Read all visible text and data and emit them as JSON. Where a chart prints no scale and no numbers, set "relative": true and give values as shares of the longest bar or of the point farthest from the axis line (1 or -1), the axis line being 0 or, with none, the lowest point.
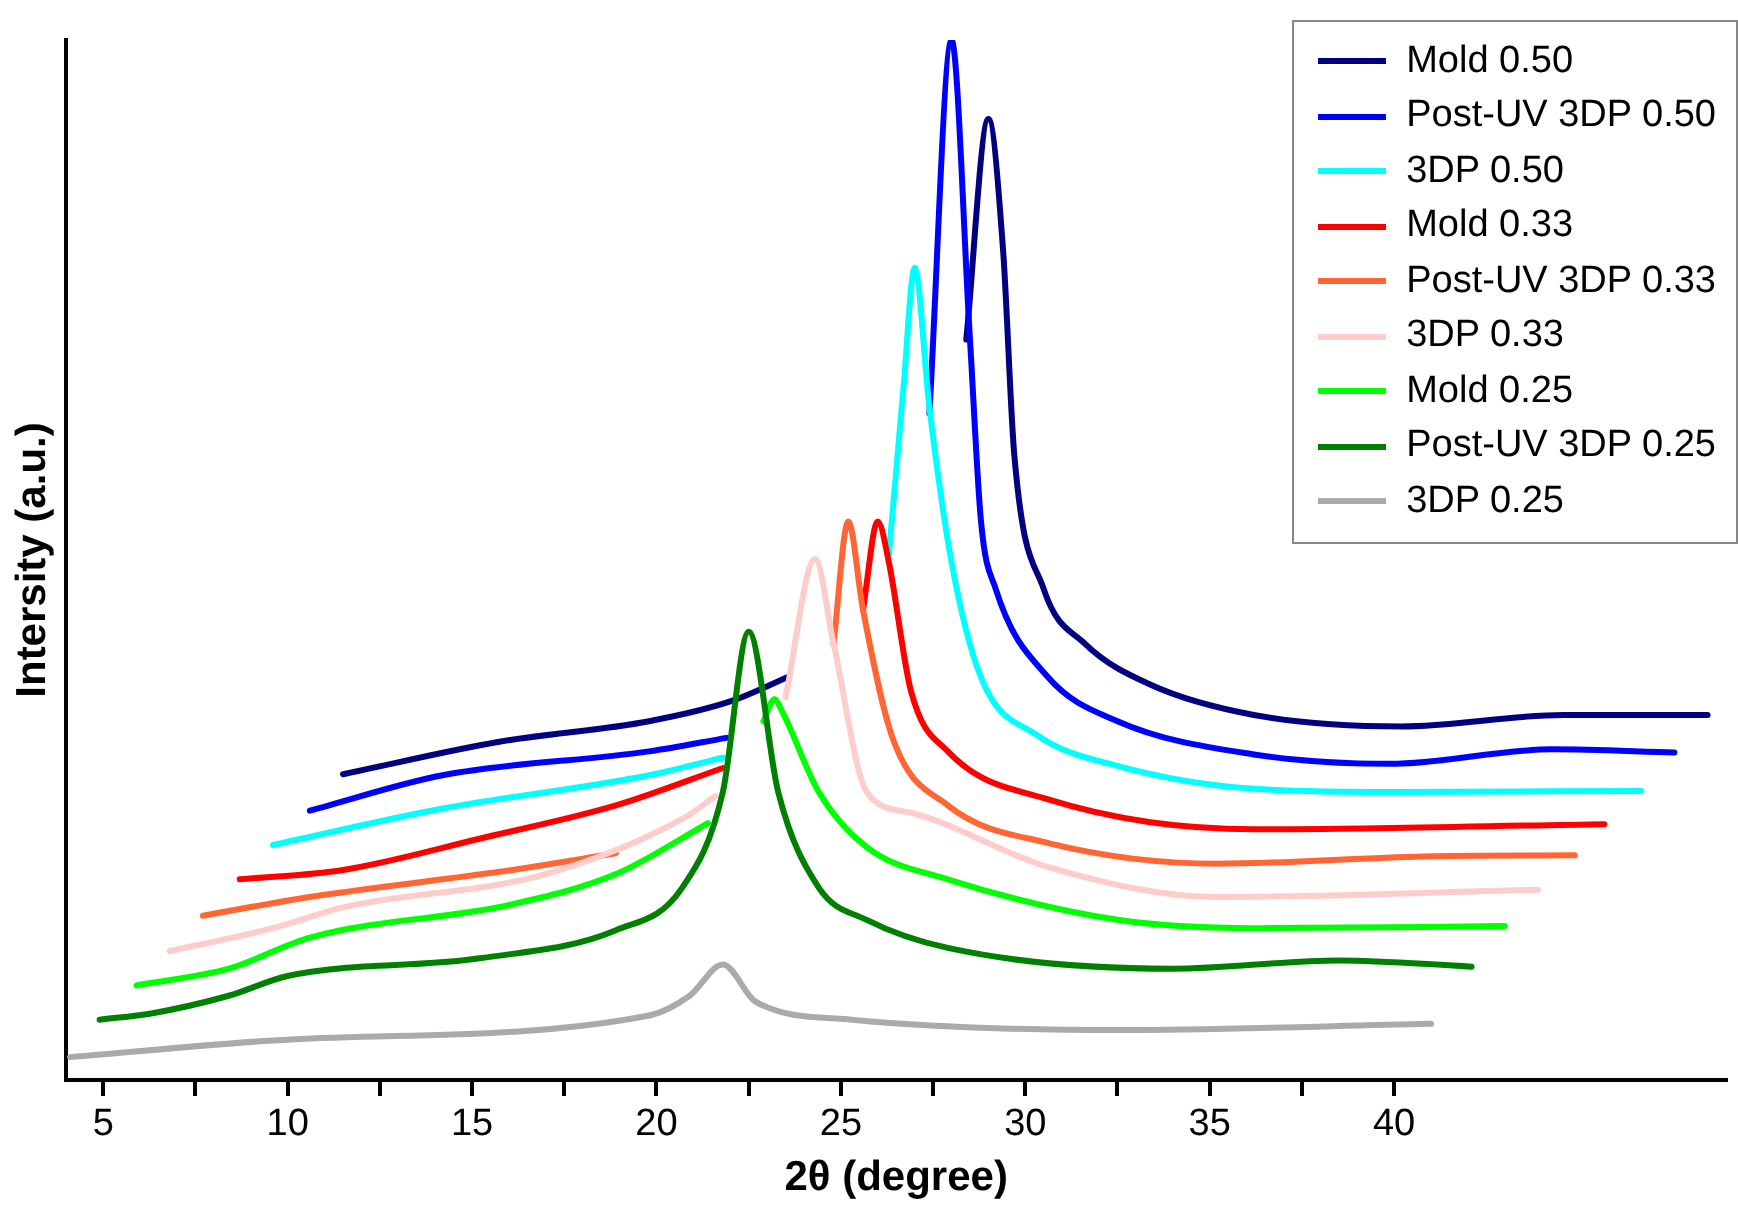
{
  "chart_data": {
    "type": "line",
    "relative": true,
    "xlabel": "2θ (degree)",
    "ylabel": "Intersity (a.u.)",
    "legend": "top right",
    "grid": false,
    "marker": "none",
    "line_style": "solid",
    "xlim": [
      4,
      49
    ],
    "xticks": [
      5,
      {
        "value": 7.5,
        "label": null
      },
      10,
      {
        "value": 12.5,
        "label": null
      },
      15,
      {
        "value": 17.5,
        "label": null
      },
      20,
      {
        "value": 22.5,
        "label": null
      },
      25,
      {
        "value": 27.5,
        "label": null
      },
      30,
      {
        "value": 32.5,
        "label": null
      },
      35,
      {
        "value": 37.5,
        "label": null
      },
      40
    ],
    "series": [
      {
        "name": "Mold 0.50",
        "color": "#000080",
        "x": [
          11.5,
          15.7,
          19.8,
          22.0,
          23.6,
          26.0,
          28.4,
          29.0,
          29.4,
          29.7,
          30.5,
          31.6,
          33.4,
          36.2,
          40.2,
          44.6,
          48.5
        ],
        "values": [
          0.294,
          0.325,
          0.345,
          0.364,
          0.388,
          null,
          0.712,
          0.924,
          0.797,
          0.602,
          0.472,
          0.42,
          0.38,
          0.351,
          0.34,
          0.351,
          0.351
        ]
      },
      {
        "name": "Post-UV 3DP 0.50",
        "color": "#0000ff",
        "x": [
          10.6,
          14.2,
          19.8,
          21.9,
          24.6,
          27.4,
          28.0,
          28.5,
          28.8,
          29.2,
          30.6,
          32.5,
          36.2,
          39.9,
          44.3,
          47.6
        ],
        "values": [
          0.259,
          0.293,
          0.316,
          0.329,
          null,
          0.641,
          1.0,
          0.712,
          0.537,
          0.472,
          0.388,
          0.345,
          0.313,
          0.304,
          0.318,
          0.315
        ]
      },
      {
        "name": "3DP 0.50",
        "color": "#00ffff",
        "x": [
          9.6,
          14.2,
          19.8,
          21.8,
          24.0,
          26.3,
          26.7,
          27.0,
          27.4,
          28.0,
          28.8,
          30.3,
          32.5,
          36.2,
          40.0,
          46.7
        ],
        "values": [
          0.226,
          0.261,
          0.293,
          0.31,
          null,
          0.504,
          0.667,
          0.781,
          0.647,
          0.498,
          0.387,
          0.332,
          0.302,
          0.28,
          0.277,
          0.278
        ]
      },
      {
        "name": "Mold 0.33",
        "color": "#ff0000",
        "x": [
          8.7,
          11.5,
          15.2,
          18.9,
          21.8,
          23.7,
          25.6,
          26.0,
          26.3,
          26.9,
          27.9,
          30.6,
          36.2,
          45.7
        ],
        "values": [
          0.193,
          0.202,
          0.232,
          0.264,
          0.3,
          null,
          0.452,
          0.537,
          0.498,
          0.374,
          0.316,
          0.27,
          0.241,
          0.246
        ]
      },
      {
        "name": "Post-UV 3DP 0.33",
        "color": "#ff6633",
        "x": [
          7.7,
          10.6,
          16.1,
          18.9,
          21.9,
          24.8,
          25.2,
          25.6,
          26.4,
          27.9,
          30.6,
          35.2,
          40.8,
          44.9
        ],
        "values": [
          0.158,
          0.176,
          0.202,
          0.218,
          null,
          0.419,
          0.537,
          0.452,
          0.329,
          0.264,
          0.228,
          0.208,
          0.215,
          0.216
        ]
      },
      {
        "name": "3DP 0.33",
        "color": "#ffcccc",
        "x": [
          6.8,
          9.6,
          11.5,
          17.0,
          20.7,
          21.6,
          22.6,
          23.5,
          24.3,
          24.8,
          25.7,
          26.9,
          30.6,
          35.2,
          43.9
        ],
        "values": [
          0.124,
          0.146,
          0.166,
          0.198,
          0.251,
          0.273,
          null,
          0.368,
          0.501,
          0.42,
          0.277,
          0.257,
          0.205,
          0.176,
          0.183
        ]
      },
      {
        "name": "Mold 0.25",
        "color": "#00ff00",
        "x": [
          5.9,
          8.4,
          10.6,
          16.1,
          18.9,
          21.4,
          22.2,
          22.9,
          23.2,
          23.4,
          24.4,
          25.7,
          27.9,
          32.5,
          36.2,
          43.0
        ],
        "values": [
          0.091,
          0.107,
          0.137,
          0.169,
          0.198,
          0.247,
          null,
          0.345,
          0.366,
          0.355,
          0.277,
          0.224,
          0.193,
          0.154,
          0.146,
          0.148
        ]
      },
      {
        "name": "Post-UV 3DP 0.25",
        "color": "#008000",
        "x": [
          4.9,
          6.3,
          8.4,
          10.0,
          15.2,
          18.9,
          20.7,
          21.8,
          22.5,
          23.3,
          24.4,
          25.7,
          27.9,
          34.0,
          38.5,
          42.1
        ],
        "values": [
          0.058,
          0.064,
          0.081,
          0.1,
          0.117,
          0.144,
          0.185,
          0.277,
          0.431,
          0.277,
          0.185,
          0.154,
          0.127,
          0.107,
          0.115,
          0.109
        ]
      },
      {
        "name": "3DP 0.25",
        "color": "#aaaaaa",
        "x": [
          4.1,
          10.1,
          19.8,
          20.9,
          21.8,
          22.7,
          25.3,
          32.5,
          41.0
        ],
        "values": [
          0.022,
          0.039,
          0.062,
          0.081,
          0.111,
          0.075,
          0.058,
          0.048,
          0.054
        ]
      }
    ]
  }
}
